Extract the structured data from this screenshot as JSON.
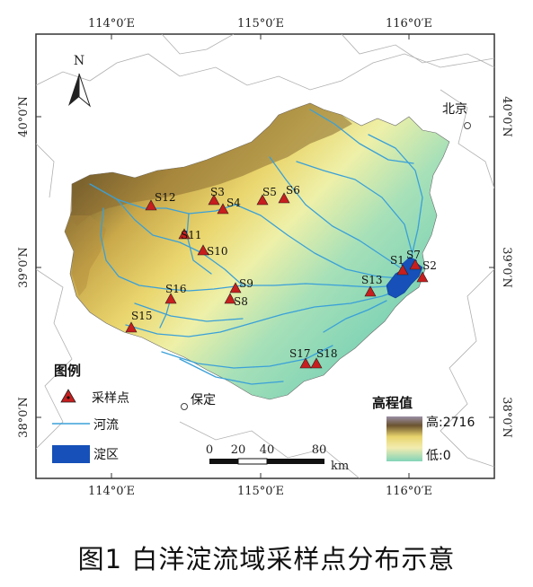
{
  "map": {
    "lon_ticks": [
      "114°0′E",
      "115°0′E",
      "116°0′E"
    ],
    "lat_ticks": [
      "40°0′N",
      "39°0′N",
      "38°0′N"
    ],
    "north_label": "N",
    "cities": [
      {
        "id": "beijing",
        "name": "北京"
      },
      {
        "id": "baoding",
        "name": "保定"
      }
    ],
    "sites": [
      {
        "id": "S1",
        "label": "S1"
      },
      {
        "id": "S2",
        "label": "S2"
      },
      {
        "id": "S3",
        "label": "S3"
      },
      {
        "id": "S4",
        "label": "S4"
      },
      {
        "id": "S5",
        "label": "S5"
      },
      {
        "id": "S6",
        "label": "S6"
      },
      {
        "id": "S7",
        "label": "S7"
      },
      {
        "id": "S8",
        "label": "S8"
      },
      {
        "id": "S9",
        "label": "S9"
      },
      {
        "id": "S10",
        "label": "S10"
      },
      {
        "id": "S11",
        "label": "S11"
      },
      {
        "id": "S12",
        "label": "S12"
      },
      {
        "id": "S13",
        "label": "S13"
      },
      {
        "id": "S15",
        "label": "S15"
      },
      {
        "id": "S16",
        "label": "S16"
      },
      {
        "id": "S17",
        "label": "S17"
      },
      {
        "id": "S18",
        "label": "S18"
      }
    ]
  },
  "legend": {
    "title": "图例",
    "sampling_point": "采样点",
    "river": "河流",
    "dian_area": "淀区"
  },
  "elevation_legend": {
    "title": "高程值",
    "high": "高:2716",
    "low": "低:0"
  },
  "scale_bar": {
    "ticks": [
      "0",
      "20",
      "40",
      "80"
    ],
    "unit": "km"
  },
  "caption": "图1 白洋淀流域采样点分布示意",
  "colors": {
    "river": "#3aa0d8",
    "lake": "#1650b8",
    "marker": "#c81e1e",
    "frame": "#333333"
  }
}
